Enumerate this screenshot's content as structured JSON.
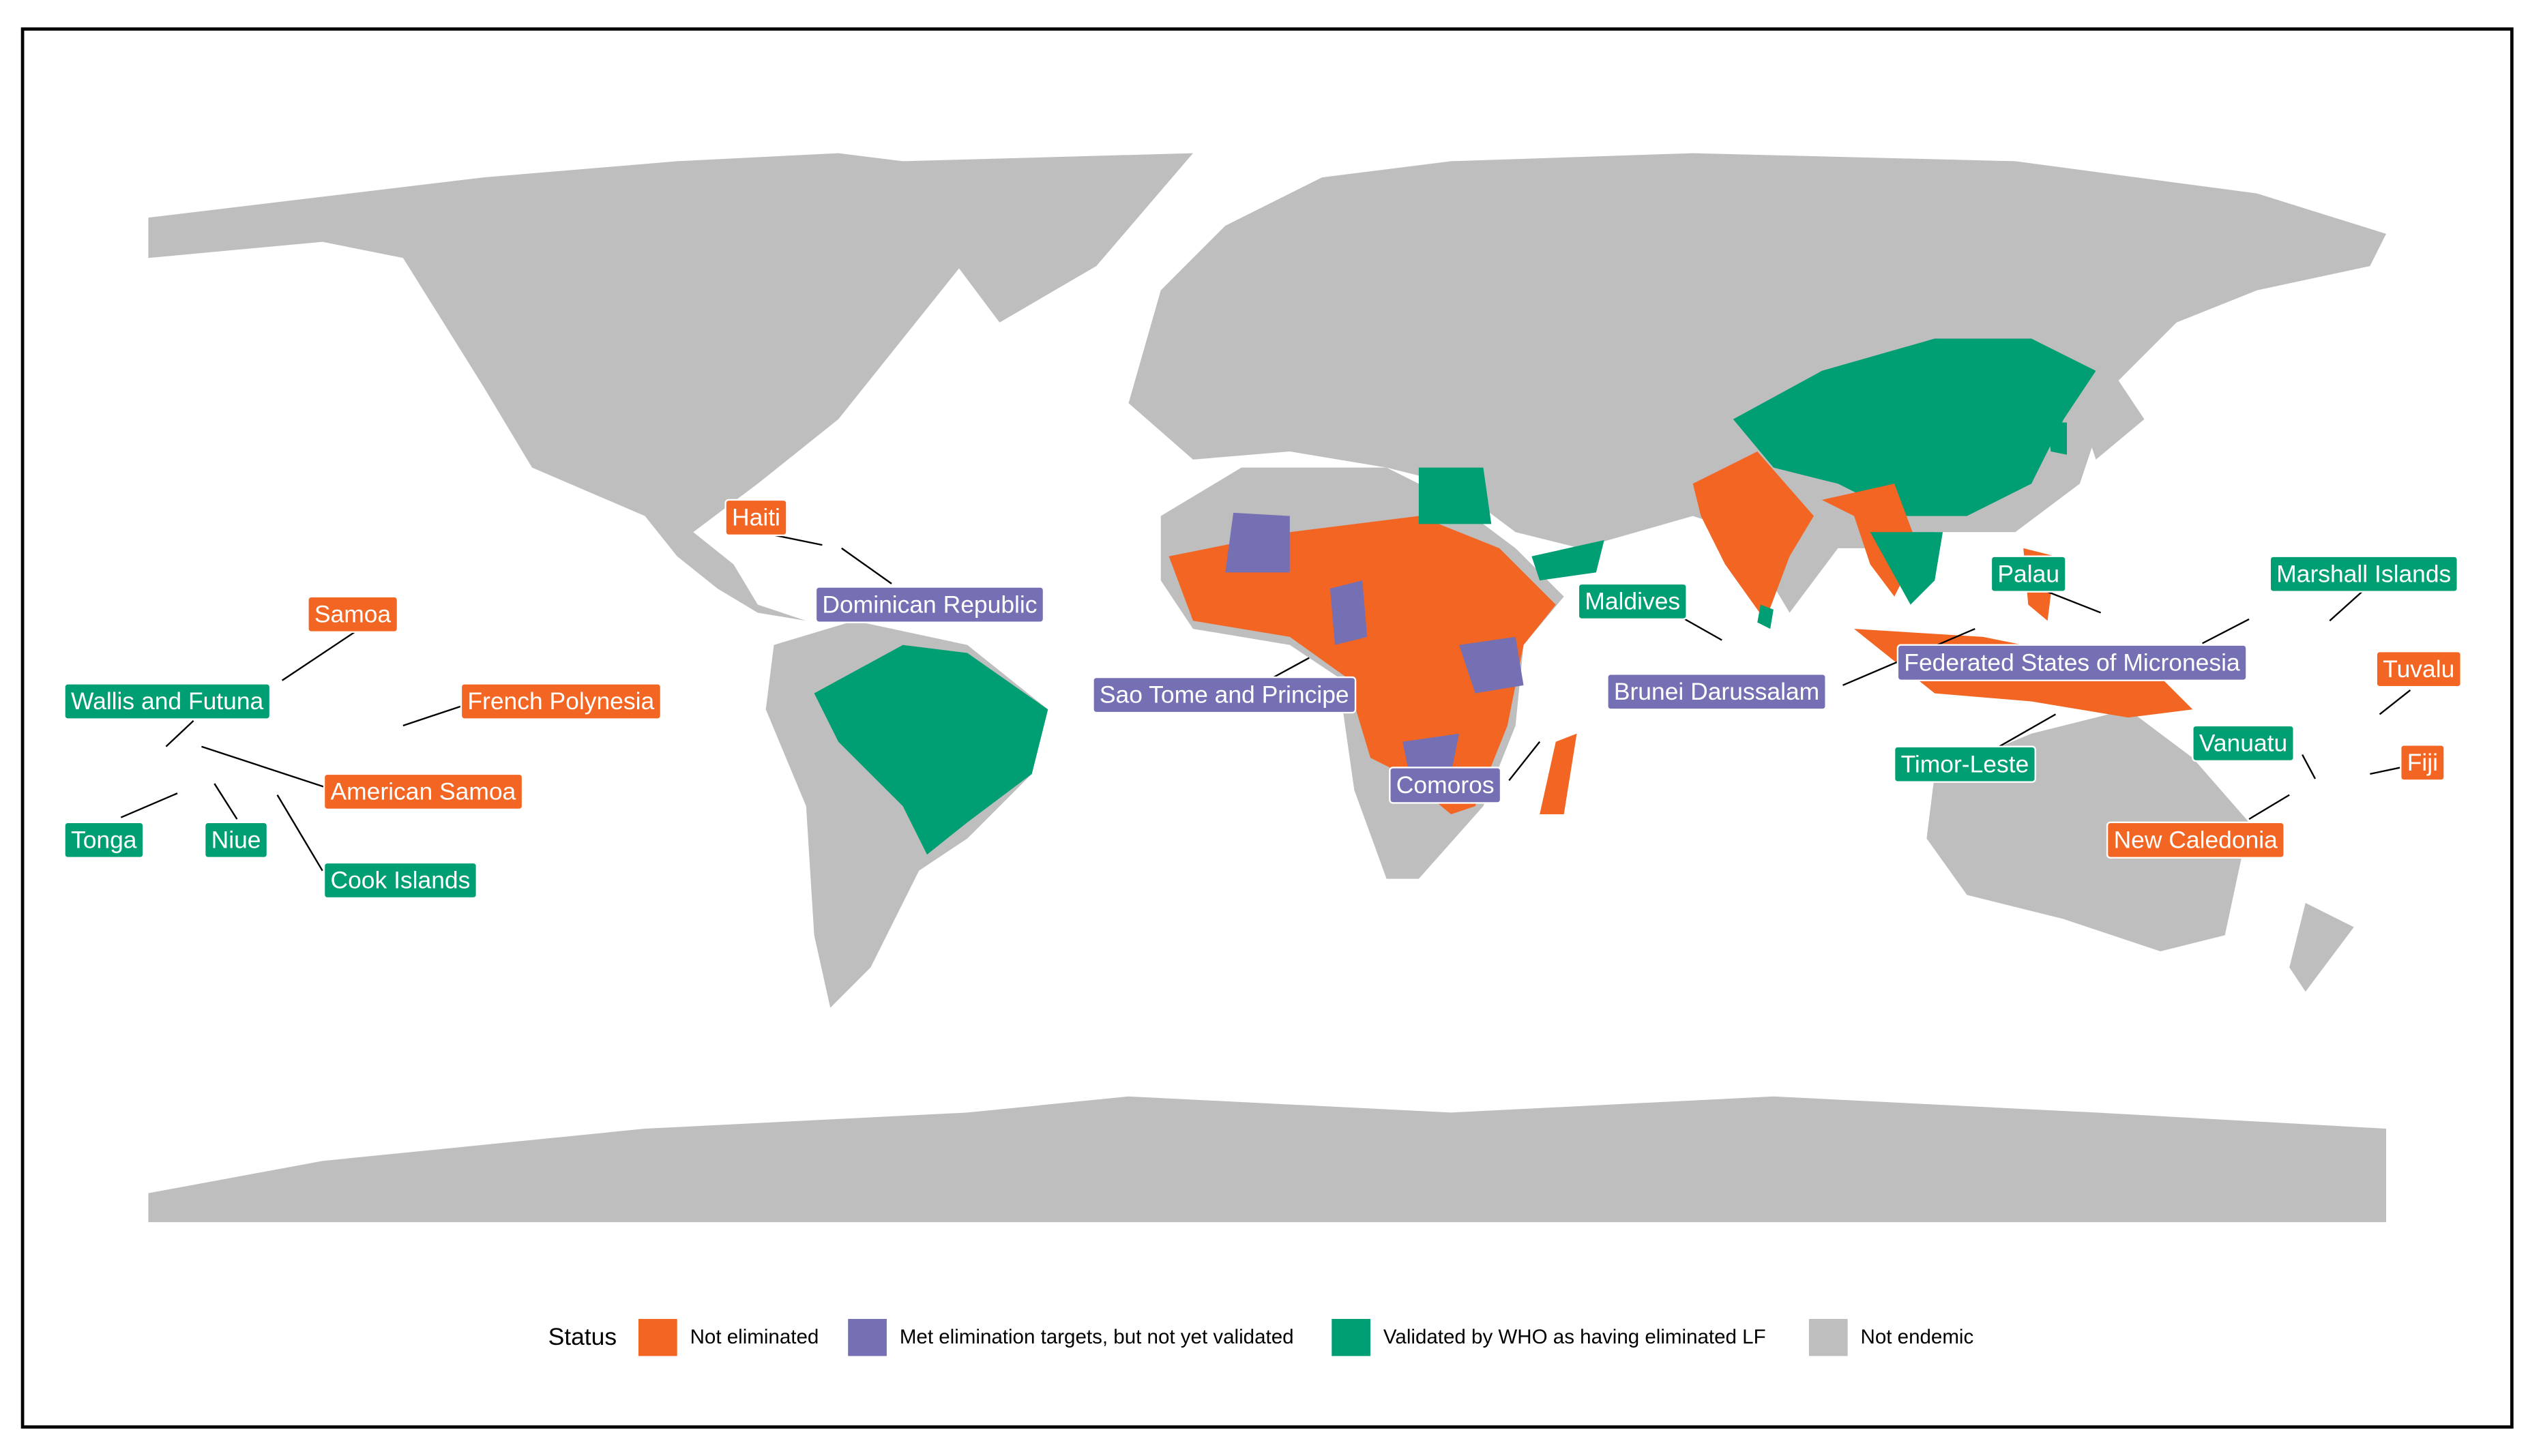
{
  "legend": {
    "title": "Status",
    "items": [
      {
        "name": "Not eliminated",
        "color": "#f26522"
      },
      {
        "name": "Met elimination targets, but not yet validated",
        "color": "#7570b3"
      },
      {
        "name": "Validated by WHO as having eliminated LF",
        "color": "#009e73"
      },
      {
        "name": "Not endemic",
        "color": "#bebebe"
      }
    ]
  },
  "labels": [
    {
      "text": "Haiti",
      "status": "Not eliminated"
    },
    {
      "text": "Dominican Republic",
      "status": "Met elimination targets, but not yet validated"
    },
    {
      "text": "Samoa",
      "status": "Not eliminated"
    },
    {
      "text": "Wallis and Futuna",
      "status": "Validated by WHO as having eliminated LF"
    },
    {
      "text": "French Polynesia",
      "status": "Not eliminated"
    },
    {
      "text": "American Samoa",
      "status": "Not eliminated"
    },
    {
      "text": "Tonga",
      "status": "Validated by WHO as having eliminated LF"
    },
    {
      "text": "Niue",
      "status": "Validated by WHO as having eliminated LF"
    },
    {
      "text": "Cook Islands",
      "status": "Validated by WHO as having eliminated LF"
    },
    {
      "text": "Maldives",
      "status": "Validated by WHO as having eliminated LF"
    },
    {
      "text": "Brunei Darussalam",
      "status": "Met elimination targets, but not yet validated"
    },
    {
      "text": "Federated States of Micronesia",
      "status": "Met elimination targets, but not yet validated"
    },
    {
      "text": "Palau",
      "status": "Validated by WHO as having eliminated LF"
    },
    {
      "text": "Marshall Islands",
      "status": "Validated by WHO as having eliminated LF"
    },
    {
      "text": "Tuvalu",
      "status": "Not eliminated"
    },
    {
      "text": "Fiji",
      "status": "Not eliminated"
    },
    {
      "text": "Vanuatu",
      "status": "Validated by WHO as having eliminated LF"
    },
    {
      "text": "New Caledonia",
      "status": "Not eliminated"
    },
    {
      "text": "Timor-Leste",
      "status": "Validated by WHO as having eliminated LF"
    },
    {
      "text": "Sao Tome and Principe",
      "status": "Met elimination targets, but not yet validated"
    },
    {
      "text": "Comoros",
      "status": "Met elimination targets, but not yet validated"
    }
  ]
}
